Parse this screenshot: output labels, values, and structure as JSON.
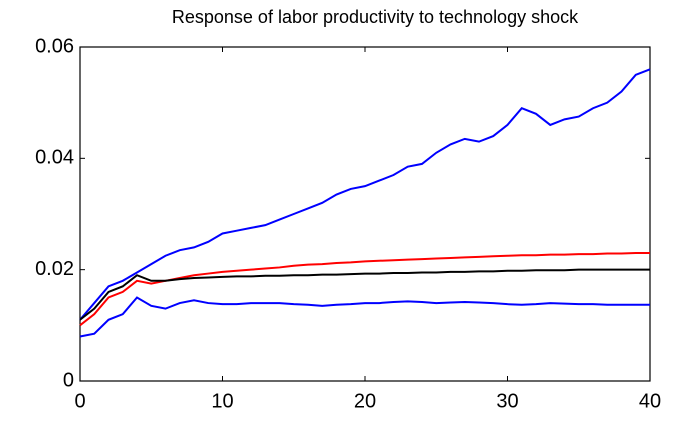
{
  "chart_data": {
    "type": "line",
    "title": "Response of labor productivity to technology shock",
    "x": [
      0,
      1,
      2,
      3,
      4,
      5,
      6,
      7,
      8,
      9,
      10,
      11,
      12,
      13,
      14,
      15,
      16,
      17,
      18,
      19,
      20,
      21,
      22,
      23,
      24,
      25,
      26,
      27,
      28,
      29,
      30,
      31,
      32,
      33,
      34,
      35,
      36,
      37,
      38,
      39,
      40
    ],
    "series": [
      {
        "color": "#0000ff",
        "values": [
          0.011,
          0.014,
          0.017,
          0.018,
          0.0195,
          0.021,
          0.0225,
          0.0235,
          0.024,
          0.025,
          0.0265,
          0.027,
          0.0275,
          0.028,
          0.029,
          0.03,
          0.031,
          0.032,
          0.0335,
          0.0345,
          0.035,
          0.036,
          0.037,
          0.0385,
          0.039,
          0.041,
          0.0425,
          0.0435,
          0.043,
          0.044,
          0.046,
          0.049,
          0.048,
          0.046,
          0.047,
          0.0475,
          0.049,
          0.05,
          0.052,
          0.055,
          0.056
        ]
      },
      {
        "color": "#ff0000",
        "values": [
          0.01,
          0.012,
          0.015,
          0.016,
          0.018,
          0.0175,
          0.018,
          0.0185,
          0.019,
          0.0193,
          0.0196,
          0.0198,
          0.02,
          0.0202,
          0.0204,
          0.0207,
          0.0209,
          0.021,
          0.0212,
          0.0213,
          0.0215,
          0.0216,
          0.0217,
          0.0218,
          0.0219,
          0.022,
          0.0221,
          0.0222,
          0.0223,
          0.0224,
          0.0225,
          0.0226,
          0.0226,
          0.0227,
          0.0227,
          0.0228,
          0.0228,
          0.0229,
          0.0229,
          0.023,
          0.023
        ]
      },
      {
        "color": "#000000",
        "values": [
          0.011,
          0.013,
          0.016,
          0.017,
          0.019,
          0.018,
          0.018,
          0.0183,
          0.0185,
          0.0186,
          0.0187,
          0.0188,
          0.0188,
          0.0189,
          0.0189,
          0.019,
          0.019,
          0.0191,
          0.0191,
          0.0192,
          0.0193,
          0.0193,
          0.0194,
          0.0194,
          0.0195,
          0.0195,
          0.0196,
          0.0196,
          0.0197,
          0.0197,
          0.0198,
          0.0198,
          0.0199,
          0.0199,
          0.0199,
          0.02,
          0.02,
          0.02,
          0.02,
          0.02,
          0.02
        ]
      },
      {
        "color": "#0000ff",
        "values": [
          0.008,
          0.0085,
          0.011,
          0.012,
          0.015,
          0.0135,
          0.013,
          0.014,
          0.0145,
          0.014,
          0.0138,
          0.0138,
          0.014,
          0.014,
          0.014,
          0.0138,
          0.0137,
          0.0135,
          0.0137,
          0.0138,
          0.014,
          0.014,
          0.0142,
          0.0143,
          0.0142,
          0.014,
          0.0141,
          0.0142,
          0.0141,
          0.014,
          0.0138,
          0.0137,
          0.0138,
          0.014,
          0.0139,
          0.0138,
          0.0138,
          0.0137,
          0.0137,
          0.0137,
          0.0137
        ]
      }
    ],
    "xlim": [
      0,
      40
    ],
    "xticks": [
      0,
      10,
      20,
      30,
      40
    ],
    "ylim": [
      0,
      0.06
    ],
    "yticks": [
      0,
      0.02,
      0.04,
      0.06
    ],
    "grid": false
  }
}
